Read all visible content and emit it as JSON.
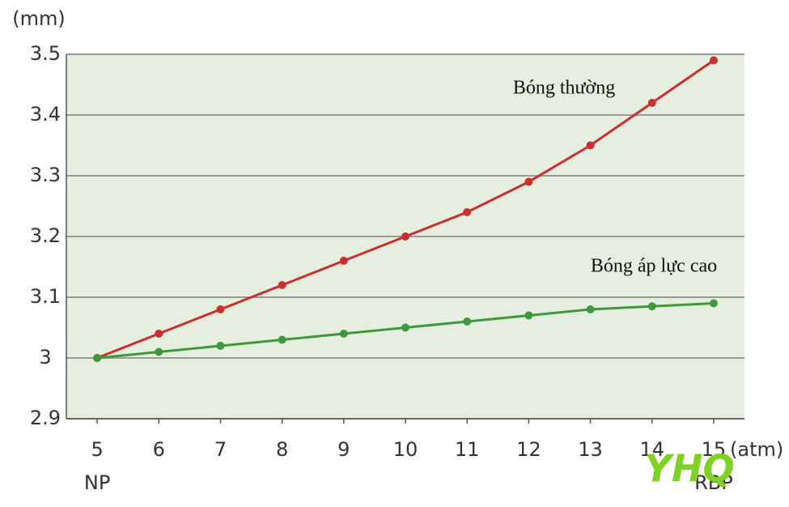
{
  "chart_data": {
    "type": "line",
    "y_unit": "(mm)",
    "x_unit": "(atm)",
    "x": [
      5,
      6,
      7,
      8,
      9,
      10,
      11,
      12,
      13,
      14,
      15
    ],
    "x_notes": [
      {
        "x": 5,
        "label": "NP"
      },
      {
        "x": 15,
        "label": "RBP"
      }
    ],
    "series": [
      {
        "name": "Bóng thường",
        "color": "#cc2e2e",
        "values": [
          3.0,
          3.04,
          3.08,
          3.12,
          3.16,
          3.2,
          3.24,
          3.29,
          3.35,
          3.42,
          3.49
        ]
      },
      {
        "name": "Bóng áp lực cao",
        "color": "#3c9a3c",
        "values": [
          3.0,
          3.01,
          3.02,
          3.03,
          3.04,
          3.05,
          3.06,
          3.07,
          3.08,
          3.085,
          3.09
        ]
      }
    ],
    "xlim": [
      4.5,
      15.5
    ],
    "xticks": [
      5,
      6,
      7,
      8,
      9,
      10,
      11,
      12,
      13,
      14,
      15
    ],
    "ylim": [
      2.9,
      3.5
    ],
    "yticks": [
      2.9,
      3,
      3.1,
      3.2,
      3.3,
      3.4,
      3.5
    ],
    "grid": true,
    "background": "#e6efdf",
    "watermark": "YHQ"
  }
}
